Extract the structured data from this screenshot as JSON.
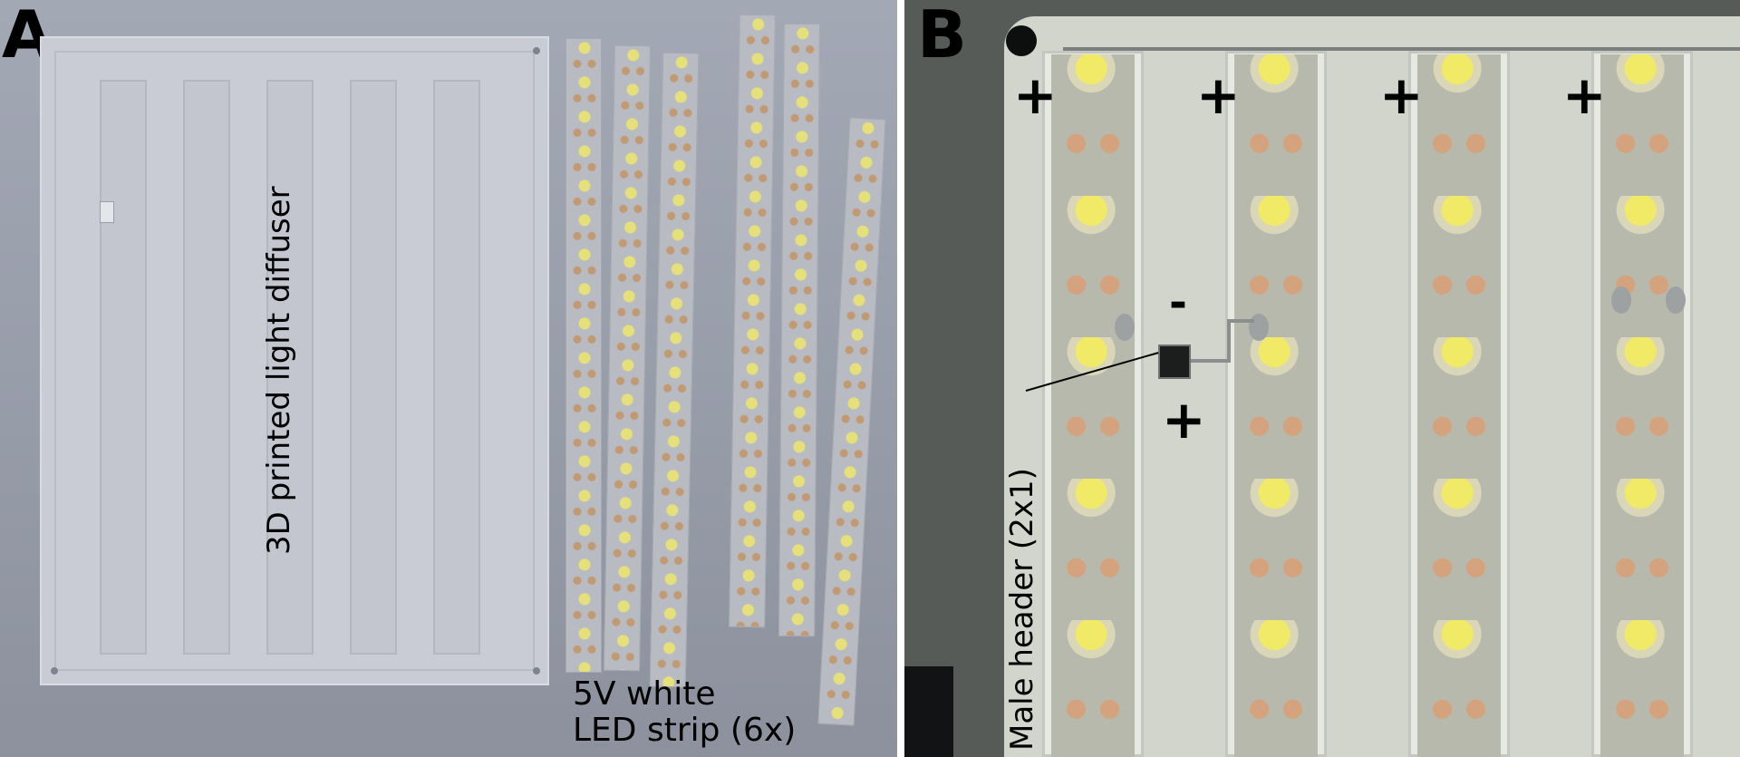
{
  "panel_a": {
    "letter": "A",
    "diffuser_label": "3D printed light diffuser",
    "strip_label_line1": "5V white",
    "strip_label_line2": "LED strip (6x)"
  },
  "panel_b": {
    "letter": "B",
    "polarity_plus": "+",
    "polarity_minus": "-",
    "header_label": "Male header (2x1)"
  }
}
